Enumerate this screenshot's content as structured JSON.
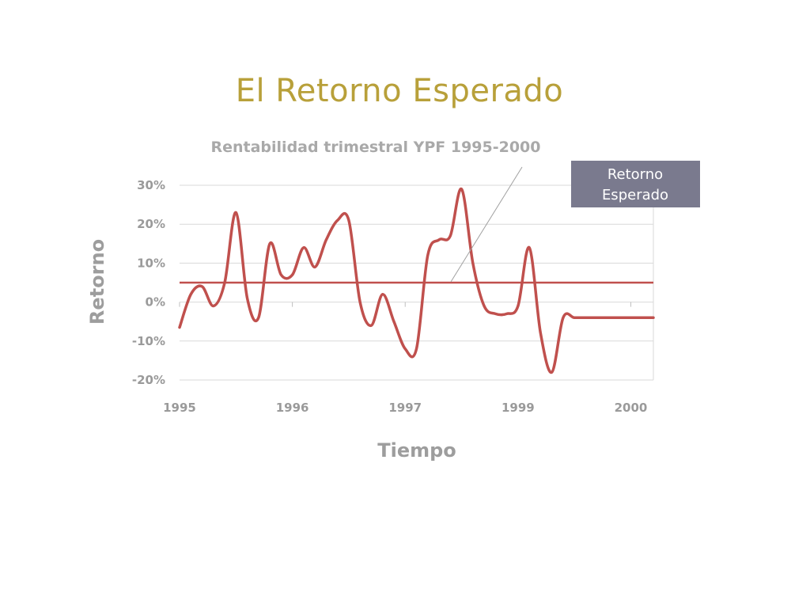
{
  "slide": {
    "title": "El Retorno Esperado"
  },
  "colors": {
    "title": "#b8a03a",
    "series": "#c0504d",
    "callout_bg": "#7a7a8e",
    "grid": "#d9d9d9",
    "text": "#9a9a9a"
  },
  "callout": {
    "line1": "Retorno",
    "line2": "Esperado"
  },
  "chart_data": {
    "type": "line",
    "title": "Rentabilidad trimestral YPF 1995-2000",
    "xlabel": "Tiempo",
    "ylabel": "Retorno",
    "ylim": [
      -0.2,
      0.3
    ],
    "y_ticks": [
      {
        "value": 0.3,
        "label": "30%"
      },
      {
        "value": 0.2,
        "label": "20%"
      },
      {
        "value": 0.1,
        "label": "10%"
      },
      {
        "value": 0.0,
        "label": "0%"
      },
      {
        "value": -0.1,
        "label": "-10%"
      },
      {
        "value": -0.2,
        "label": "-20%"
      }
    ],
    "x_ticks": [
      {
        "value": 0,
        "label": "1995"
      },
      {
        "value": 5,
        "label": "1996"
      },
      {
        "value": 10,
        "label": "1997"
      },
      {
        "value": 15,
        "label": "1999"
      },
      {
        "value": 20,
        "label": "2000"
      }
    ],
    "xlim": [
      0,
      21
    ],
    "grid": true,
    "legend": "none",
    "expected_return": 0.05,
    "series": [
      {
        "x": [
          0,
          0.5,
          1,
          1.5,
          2,
          2.5,
          3,
          3.5,
          4,
          4.5,
          5,
          5.5,
          6,
          6.5,
          7,
          7.5,
          8,
          8.5,
          9,
          9.5,
          10,
          10.5,
          11,
          11.5,
          12,
          12.5,
          13,
          13.5,
          14,
          14.5,
          15,
          15.5,
          16,
          16.5,
          17,
          17.5,
          18,
          18.5,
          19,
          19.5,
          20,
          20.5,
          21
        ],
        "values": [
          -0.065,
          0.02,
          0.04,
          -0.01,
          0.05,
          0.23,
          0.01,
          -0.04,
          0.15,
          0.07,
          0.07,
          0.14,
          0.09,
          0.16,
          0.21,
          0.21,
          0.0,
          -0.06,
          0.02,
          -0.05,
          -0.12,
          -0.12,
          0.12,
          0.16,
          0.17,
          0.29,
          0.1,
          -0.01,
          -0.03,
          -0.03,
          -0.01,
          0.14,
          -0.08,
          -0.18,
          -0.04,
          -0.04,
          -0.04,
          -0.04,
          -0.04,
          -0.04,
          -0.04,
          -0.04,
          -0.04
        ]
      }
    ]
  }
}
